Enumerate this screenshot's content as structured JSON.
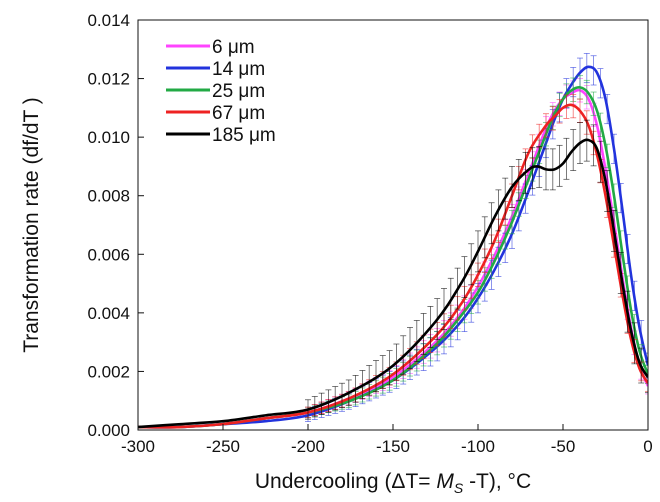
{
  "chart_data": {
    "type": "line",
    "xlabel": "Undercooling (ΔT= M_S -T), °C",
    "xlabel_parts": {
      "pre": "Undercooling (ΔT= ",
      "ms_main": "M",
      "ms_sub": "S",
      "post": " -T), °C"
    },
    "ylabel": "Transformation rate (df/dT )",
    "xlim": [
      -300,
      0
    ],
    "ylim": [
      0,
      0.014
    ],
    "xticks": [
      -300,
      -250,
      -200,
      -150,
      -100,
      -50,
      0
    ],
    "yticks": [
      0.0,
      0.002,
      0.004,
      0.006,
      0.008,
      0.01,
      0.012,
      0.014
    ],
    "xtick_labels": [
      "-300",
      "-250",
      "-200",
      "-150",
      "-100",
      "-50",
      "0"
    ],
    "ytick_labels": [
      "0.000",
      "0.002",
      "0.004",
      "0.006",
      "0.008",
      "0.010",
      "0.012",
      "0.014"
    ],
    "grid": false,
    "legend_position": "top-left",
    "error_bars": true,
    "series": [
      {
        "name": "6 μm",
        "color": "#ff44ff",
        "x": [
          -300,
          -275,
          -250,
          -225,
          -200,
          -175,
          -150,
          -125,
          -110,
          -100,
          -90,
          -80,
          -70,
          -60,
          -55,
          -50,
          -45,
          -40,
          -35,
          -30,
          -25,
          -20,
          -15,
          -10,
          -5,
          0
        ],
        "y": [
          0.0001,
          0.0001,
          0.0002,
          0.0004,
          0.0006,
          0.0011,
          0.0018,
          0.003,
          0.004,
          0.0049,
          0.006,
          0.0073,
          0.0088,
          0.0103,
          0.0109,
          0.0113,
          0.0115,
          0.0116,
          0.0113,
          0.0104,
          0.0089,
          0.0071,
          0.0052,
          0.0035,
          0.0022,
          0.0015
        ],
        "error": 0.0004
      },
      {
        "name": "14 μm",
        "color": "#2233dd",
        "x": [
          -300,
          -275,
          -250,
          -225,
          -200,
          -175,
          -150,
          -125,
          -110,
          -100,
          -90,
          -80,
          -70,
          -60,
          -55,
          -50,
          -45,
          -40,
          -35,
          -30,
          -25,
          -20,
          -15,
          -10,
          -5,
          0
        ],
        "y": [
          0.0001,
          0.0001,
          0.0002,
          0.0003,
          0.0005,
          0.001,
          0.0017,
          0.0028,
          0.0037,
          0.0045,
          0.0055,
          0.0067,
          0.0082,
          0.0098,
          0.0106,
          0.0113,
          0.0118,
          0.0122,
          0.0124,
          0.0122,
          0.0113,
          0.0096,
          0.0075,
          0.0053,
          0.0035,
          0.0022
        ],
        "error": 0.0005
      },
      {
        "name": "25 μm",
        "color": "#22aa44",
        "x": [
          -300,
          -275,
          -250,
          -225,
          -200,
          -175,
          -150,
          -125,
          -110,
          -100,
          -90,
          -80,
          -70,
          -60,
          -55,
          -50,
          -45,
          -40,
          -35,
          -30,
          -25,
          -20,
          -15,
          -10,
          -5,
          0
        ],
        "y": [
          0.0001,
          0.0001,
          0.0002,
          0.0004,
          0.0006,
          0.001,
          0.0017,
          0.0029,
          0.0039,
          0.0047,
          0.0058,
          0.0071,
          0.0086,
          0.0101,
          0.0108,
          0.0113,
          0.0116,
          0.0117,
          0.0115,
          0.0109,
          0.0097,
          0.008,
          0.006,
          0.0041,
          0.0027,
          0.0019
        ],
        "error": 0.0004
      },
      {
        "name": "67 μm",
        "color": "#ee2222",
        "x": [
          -300,
          -275,
          -250,
          -225,
          -200,
          -175,
          -150,
          -125,
          -110,
          -100,
          -90,
          -80,
          -70,
          -60,
          -55,
          -50,
          -45,
          -40,
          -35,
          -30,
          -25,
          -20,
          -15,
          -10,
          -5,
          0
        ],
        "y": [
          0.0001,
          0.0001,
          0.0002,
          0.0004,
          0.0006,
          0.0011,
          0.0019,
          0.0032,
          0.0043,
          0.0053,
          0.0065,
          0.008,
          0.0095,
          0.0104,
          0.0107,
          0.011,
          0.0111,
          0.0109,
          0.0104,
          0.0094,
          0.008,
          0.0063,
          0.0046,
          0.0031,
          0.0021,
          0.0016
        ],
        "error": 0.0004
      },
      {
        "name": "185 μm",
        "color": "#000000",
        "x": [
          -300,
          -275,
          -250,
          -225,
          -200,
          -175,
          -150,
          -125,
          -110,
          -100,
          -90,
          -80,
          -70,
          -65,
          -60,
          -55,
          -50,
          -45,
          -40,
          -35,
          -30,
          -25,
          -20,
          -15,
          -10,
          -5,
          0
        ],
        "y": [
          0.0001,
          0.0002,
          0.0003,
          0.0005,
          0.0007,
          0.0013,
          0.0022,
          0.0037,
          0.005,
          0.0061,
          0.0073,
          0.0083,
          0.0089,
          0.009,
          0.0089,
          0.0089,
          0.0091,
          0.0095,
          0.0098,
          0.0099,
          0.0096,
          0.0085,
          0.0068,
          0.005,
          0.0034,
          0.0023,
          0.0018
        ],
        "error": 0.0007
      }
    ]
  }
}
